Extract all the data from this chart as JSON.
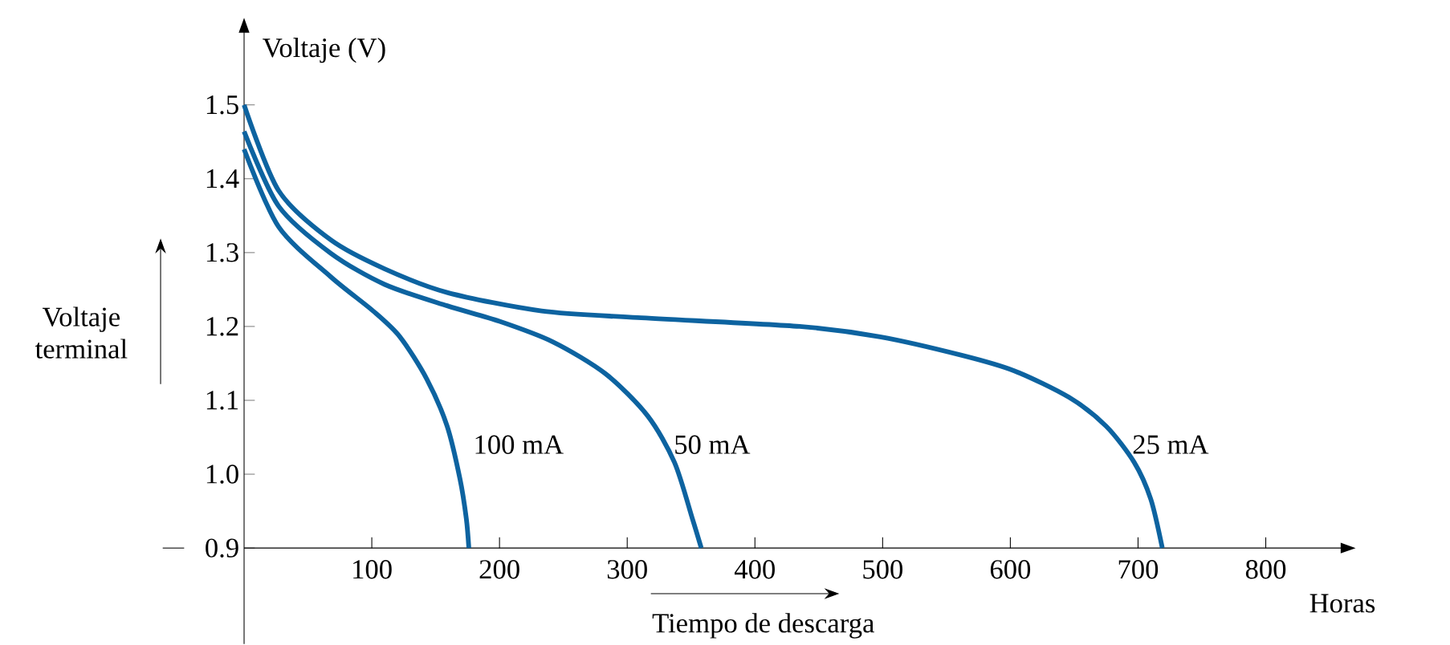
{
  "chart_data": {
    "type": "line",
    "xlabel": "Horas",
    "ylabel": "Voltaje (V)",
    "annotations": [
      "Voltaje terminal",
      "Tiempo de descarga"
    ],
    "xlim": [
      0,
      860
    ],
    "ylim": [
      0.77,
      1.6
    ],
    "xticks": [
      100,
      200,
      300,
      400,
      500,
      600,
      700,
      800
    ],
    "yticks": [
      0.9,
      {
        "value": 1.0,
        "label": "1.0"
      },
      1.1,
      1.2,
      1.3,
      1.4,
      1.5
    ],
    "series": [
      {
        "name": "100 mA",
        "color": "#0d63a0",
        "x": [
          0,
          27,
          68,
          101,
          122,
          143,
          159,
          169,
          174,
          176
        ],
        "values": [
          1.44,
          1.335,
          1.267,
          1.221,
          1.186,
          1.129,
          1.065,
          0.994,
          0.94,
          0.9
        ]
      },
      {
        "name": "50 mA",
        "color": "#0d63a0",
        "x": [
          0,
          27,
          68,
          110,
          159,
          200,
          242,
          283,
          316,
          337,
          351,
          358
        ],
        "values": [
          1.464,
          1.363,
          1.299,
          1.257,
          1.228,
          1.207,
          1.179,
          1.136,
          1.079,
          1.016,
          0.94,
          0.9
        ]
      },
      {
        "name": "25 mA",
        "color": "#0d63a0",
        "x": [
          0,
          27,
          68,
          110,
          159,
          233,
          308,
          435,
          498,
          562,
          603,
          646,
          675,
          697,
          710,
          719
        ],
        "values": [
          1.5,
          1.384,
          1.317,
          1.278,
          1.246,
          1.221,
          1.212,
          1.2,
          1.186,
          1.161,
          1.14,
          1.104,
          1.065,
          1.016,
          0.966,
          0.9
        ]
      }
    ]
  }
}
